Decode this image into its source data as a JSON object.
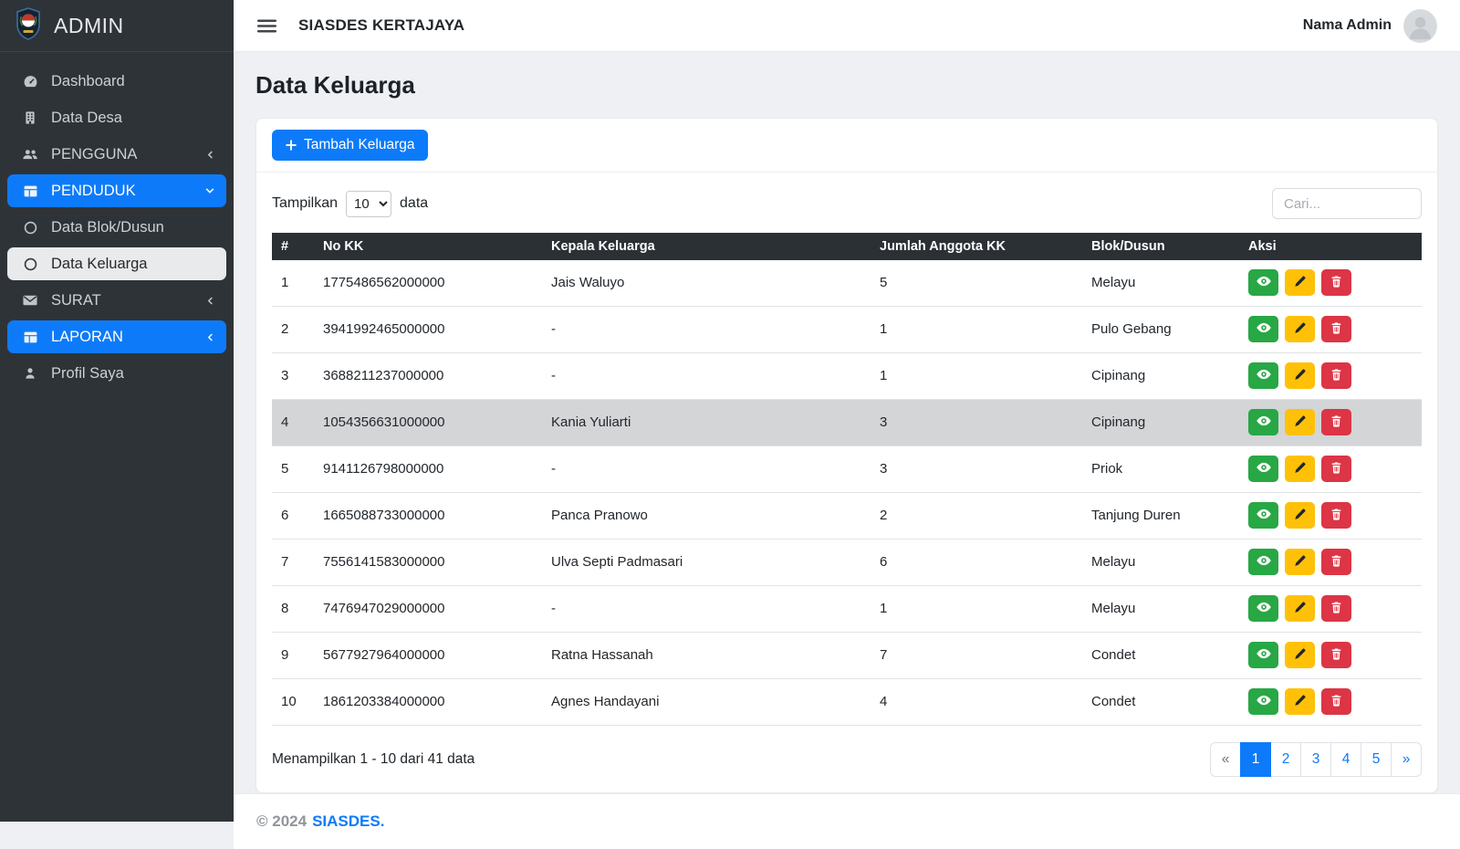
{
  "colors": {
    "accent_blue": "#0d7bf9",
    "sidebar_bg": "#2e3338",
    "table_header_bg": "#2b3035",
    "row_highlight": "#d3d5d7",
    "action_view_green": "#28a745",
    "action_edit_yellow": "#ffc107",
    "action_delete_red": "#dc3545"
  },
  "sidebar": {
    "brand": "ADMIN",
    "logo_icon": "village-emblem-logo",
    "items": [
      {
        "label": "Dashboard",
        "icon": "speedometer-icon",
        "type": "link"
      },
      {
        "label": "Data Desa",
        "icon": "building-icon",
        "type": "link"
      },
      {
        "label": "PENGGUNA",
        "icon": "users-icon",
        "type": "collapse",
        "chevron": "left"
      },
      {
        "label": "PENDUDUK",
        "icon": "grid-icon",
        "type": "collapse",
        "chevron": "down",
        "active": true
      },
      {
        "label": "Data Blok/Dusun",
        "icon": "circle-icon",
        "type": "sublink"
      },
      {
        "label": "Data Keluarga",
        "icon": "circle-icon",
        "type": "sublink",
        "active": true
      },
      {
        "label": "SURAT",
        "icon": "envelope-icon",
        "type": "collapse",
        "chevron": "left"
      },
      {
        "label": "LAPORAN",
        "icon": "grid-icon",
        "type": "collapse",
        "chevron": "left",
        "active": true
      },
      {
        "label": "Profil Saya",
        "icon": "person-icon",
        "type": "link"
      }
    ]
  },
  "topbar": {
    "menu_icon": "hamburger-menu-icon",
    "brand": "SIASDES KERTAJAYA",
    "user_name": "Nama Admin",
    "avatar_icon": "avatar-person-icon"
  },
  "page": {
    "title": "Data Keluarga"
  },
  "card": {
    "add_button_label": "Tambah Keluarga",
    "add_button_icon": "plus-icon",
    "show_label_before": "Tampilkan",
    "show_value": "10",
    "show_options": [
      "10"
    ],
    "show_label_after": "data",
    "search_placeholder": "Cari...",
    "table": {
      "headers": [
        "#",
        "No KK",
        "Kepala Keluarga",
        "Jumlah Anggota KK",
        "Blok/Dusun",
        "Aksi"
      ],
      "rows": [
        {
          "no": "1",
          "no_kk": "1775486562000000",
          "kepala_keluarga": "Jais Waluyo",
          "jumlah_anggota": "5",
          "blok_dusun": "Melayu"
        },
        {
          "no": "2",
          "no_kk": "3941992465000000",
          "kepala_keluarga": "-",
          "jumlah_anggota": "1",
          "blok_dusun": "Pulo Gebang"
        },
        {
          "no": "3",
          "no_kk": "3688211237000000",
          "kepala_keluarga": "-",
          "jumlah_anggota": "1",
          "blok_dusun": "Cipinang"
        },
        {
          "no": "4",
          "no_kk": "1054356631000000",
          "kepala_keluarga": "Kania Yuliarti",
          "jumlah_anggota": "3",
          "blok_dusun": "Cipinang",
          "highlighted": true
        },
        {
          "no": "5",
          "no_kk": "9141126798000000",
          "kepala_keluarga": "-",
          "jumlah_anggota": "3",
          "blok_dusun": "Priok"
        },
        {
          "no": "6",
          "no_kk": "1665088733000000",
          "kepala_keluarga": "Panca Pranowo",
          "jumlah_anggota": "2",
          "blok_dusun": "Tanjung Duren"
        },
        {
          "no": "7",
          "no_kk": "7556141583000000",
          "kepala_keluarga": "Ulva Septi Padmasari",
          "jumlah_anggota": "6",
          "blok_dusun": "Melayu"
        },
        {
          "no": "8",
          "no_kk": "7476947029000000",
          "kepala_keluarga": "-",
          "jumlah_anggota": "1",
          "blok_dusun": "Melayu"
        },
        {
          "no": "9",
          "no_kk": "5677927964000000",
          "kepala_keluarga": "Ratna Hassanah",
          "jumlah_anggota": "7",
          "blok_dusun": "Condet"
        },
        {
          "no": "10",
          "no_kk": "1861203384000000",
          "kepala_keluarga": "Agnes Handayani",
          "jumlah_anggota": "4",
          "blok_dusun": "Condet"
        }
      ],
      "actions": [
        {
          "name": "view",
          "icon": "eye-icon",
          "color": "#28a745"
        },
        {
          "name": "edit",
          "icon": "pencil-icon",
          "color": "#ffc107"
        },
        {
          "name": "delete",
          "icon": "trash-icon",
          "color": "#dc3545"
        }
      ]
    },
    "summary": "Menampilkan 1 - 10 dari 41 data",
    "pagination": [
      {
        "label": "«",
        "name": "prev",
        "state": "muted"
      },
      {
        "label": "1",
        "name": "page-1",
        "state": "active"
      },
      {
        "label": "2",
        "name": "page-2"
      },
      {
        "label": "3",
        "name": "page-3"
      },
      {
        "label": "4",
        "name": "page-4"
      },
      {
        "label": "5",
        "name": "page-5"
      },
      {
        "label": "»",
        "name": "next"
      }
    ]
  },
  "footer": {
    "copyright": "© 2024",
    "brand": "SIASDES."
  }
}
